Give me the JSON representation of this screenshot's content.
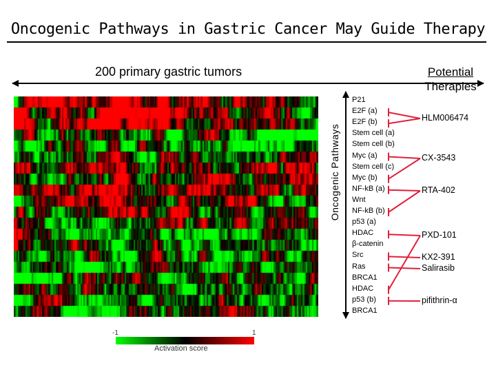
{
  "title": "Oncogenic Pathways in Gastric Cancer May Guide Therapy",
  "cohort_label": "200 primary gastric tumors",
  "axis_label": "Oncogenic Pathways",
  "therapies_header": [
    "Potential",
    "Therapies"
  ],
  "pathways": [
    "P21",
    "E2F (a)",
    "E2F (b)",
    "Stem cell (a)",
    "Stem cell (b)",
    "Myc (a)",
    "Stem cell (c)",
    "Myc (b)",
    "NF-kB (a)",
    "Wnt",
    "NF-kB (b)",
    "p53 (a)",
    "HDAC",
    "β-catenin",
    "Src",
    "Ras",
    "BRCA1",
    "HDAC",
    "p53 (b)",
    "BRCA1"
  ],
  "therapies": [
    {
      "label": "HLM006474",
      "targets": [
        "E2F (a)",
        "E2F (b)"
      ]
    },
    {
      "label": "CX-3543",
      "targets": [
        "Myc (a)",
        "Myc (b)"
      ]
    },
    {
      "label": "RTA-402",
      "targets": [
        "NF-kB (a)",
        "NF-kB (b)"
      ]
    },
    {
      "label": "PXD-101",
      "targets": [
        "HDAC",
        "HDAC"
      ]
    },
    {
      "label": "KX2-391",
      "targets": [
        "Src"
      ]
    },
    {
      "label": "Salirasib",
      "targets": [
        "Ras"
      ]
    },
    {
      "label": "pifithrin-α",
      "targets": [
        "p53 (b)"
      ]
    }
  ],
  "scale": {
    "min_label": "-1",
    "max_label": "1",
    "caption": "Activation score"
  },
  "colors": {
    "activated": "#ff0000",
    "neutral": "#000000",
    "repressed": "#00ff00",
    "inhibitor_line": "#e0203a"
  }
}
